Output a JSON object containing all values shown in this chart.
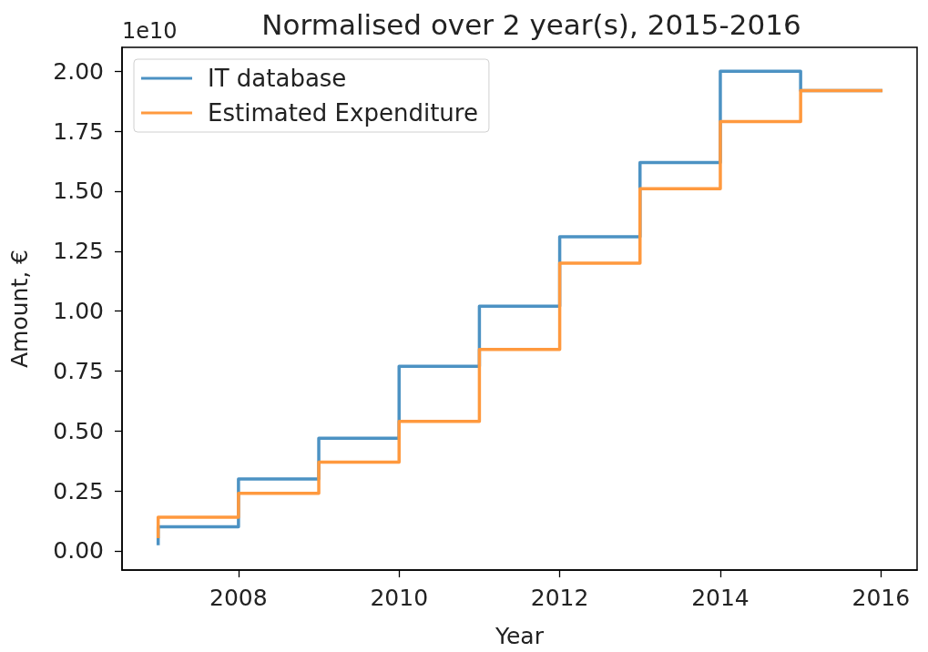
{
  "chart_data": {
    "type": "step",
    "title": "Normalised over 2 year(s), 2015-2016",
    "xlabel": "Year",
    "ylabel": "Amount, €",
    "annotations": [
      "1e10"
    ],
    "x": [
      2007,
      2008,
      2009,
      2010,
      2011,
      2012,
      2013,
      2014,
      2015,
      2016
    ],
    "series": [
      {
        "name": "IT database",
        "color": "#4c92c3",
        "values": [
          0.03,
          0.1,
          0.3,
          0.47,
          0.77,
          1.02,
          1.31,
          1.62,
          2.0,
          1.92
        ]
      },
      {
        "name": "Estimated Expenditure",
        "color": "#ff993e",
        "values": [
          0.06,
          0.14,
          0.24,
          0.37,
          0.54,
          0.84,
          1.2,
          1.51,
          1.79,
          1.92
        ]
      }
    ],
    "xlim": [
      2006.55,
      2016.45
    ],
    "xticks": [
      2008,
      2010,
      2012,
      2014,
      2016
    ],
    "ylim": [
      -0.08,
      2.1
    ],
    "yticks": [
      {
        "value": 0,
        "label": "0.00"
      },
      0.25,
      {
        "value": 0.5,
        "label": "0.50"
      },
      0.75,
      {
        "value": 1,
        "label": "1.00"
      },
      1.25,
      {
        "value": 1.5,
        "label": "1.50"
      },
      1.75,
      {
        "value": 2,
        "label": "2.00"
      }
    ],
    "legend": "top left"
  }
}
